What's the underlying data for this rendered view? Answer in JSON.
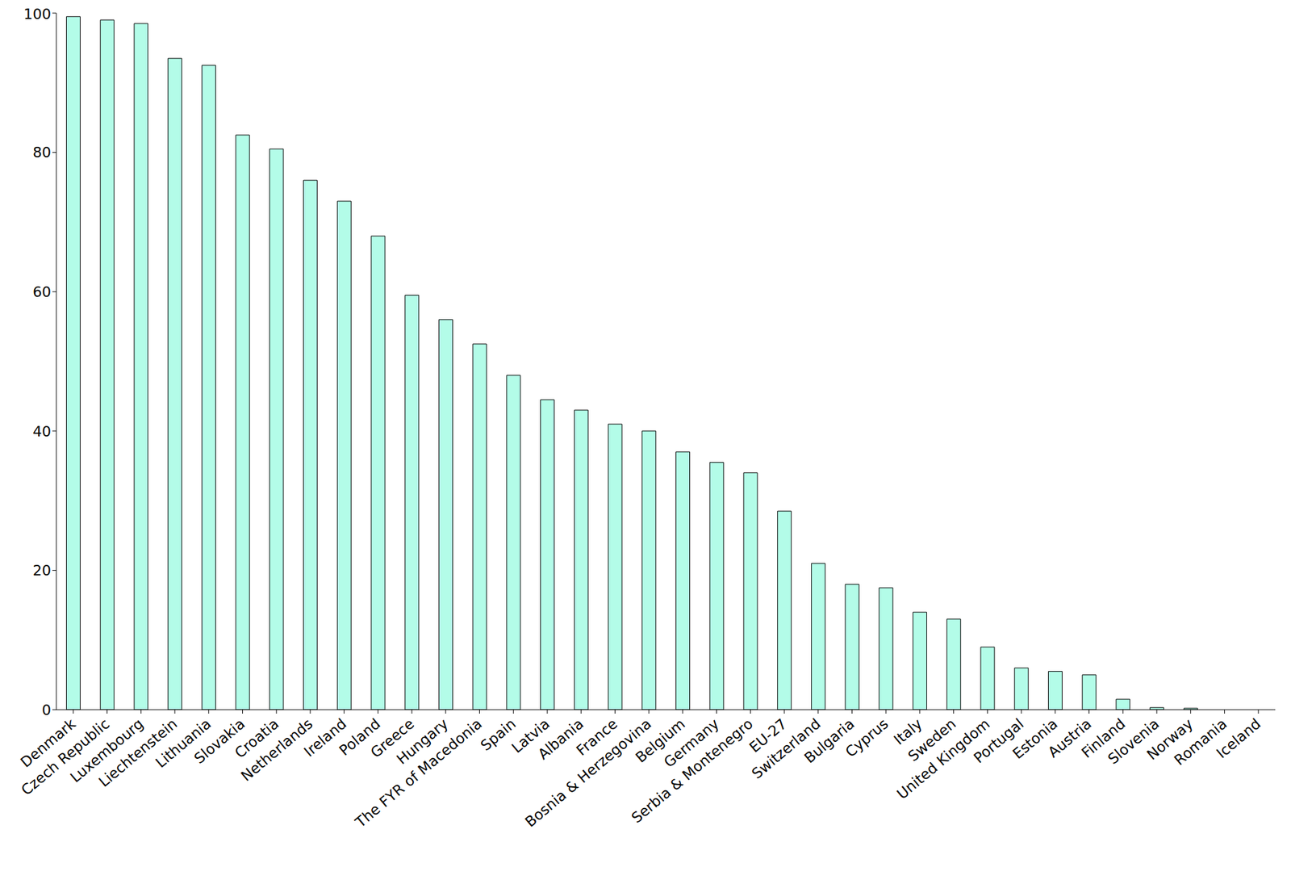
{
  "chart_data": {
    "type": "bar",
    "categories": [
      "Denmark",
      "Czech Republic",
      "Luxembourg",
      "Liechtenstein",
      "Lithuania",
      "Slovakia",
      "Croatia",
      "Netherlands",
      "Ireland",
      "Poland",
      "Greece",
      "Hungary",
      "The FYR of Macedonia",
      "Spain",
      "Latvia",
      "Albania",
      "France",
      "Bosnia & Herzegovina",
      "Belgium",
      "Germany",
      "Serbia & Montenegro",
      "EU-27",
      "Switzerland",
      "Bulgaria",
      "Cyprus",
      "Italy",
      "Sweden",
      "United Kingdom",
      "Portugal",
      "Estonia",
      "Austria",
      "Finland",
      "Slovenia",
      "Norway",
      "Romania",
      "Iceland"
    ],
    "values": [
      99.5,
      99,
      98.5,
      93.5,
      92.5,
      82.5,
      80.5,
      76,
      73,
      68,
      59.5,
      56,
      52.5,
      48,
      44.5,
      43,
      41,
      40,
      37,
      35.5,
      34,
      28.5,
      21,
      18,
      17.5,
      14,
      13,
      9,
      6,
      5.5,
      5,
      1.5,
      0.3,
      0.2,
      0,
      0
    ],
    "color": "#b3fce8",
    "ylim": [
      0,
      100
    ],
    "yticks": [
      0,
      20,
      40,
      60,
      80,
      100
    ],
    "grid": false
  }
}
